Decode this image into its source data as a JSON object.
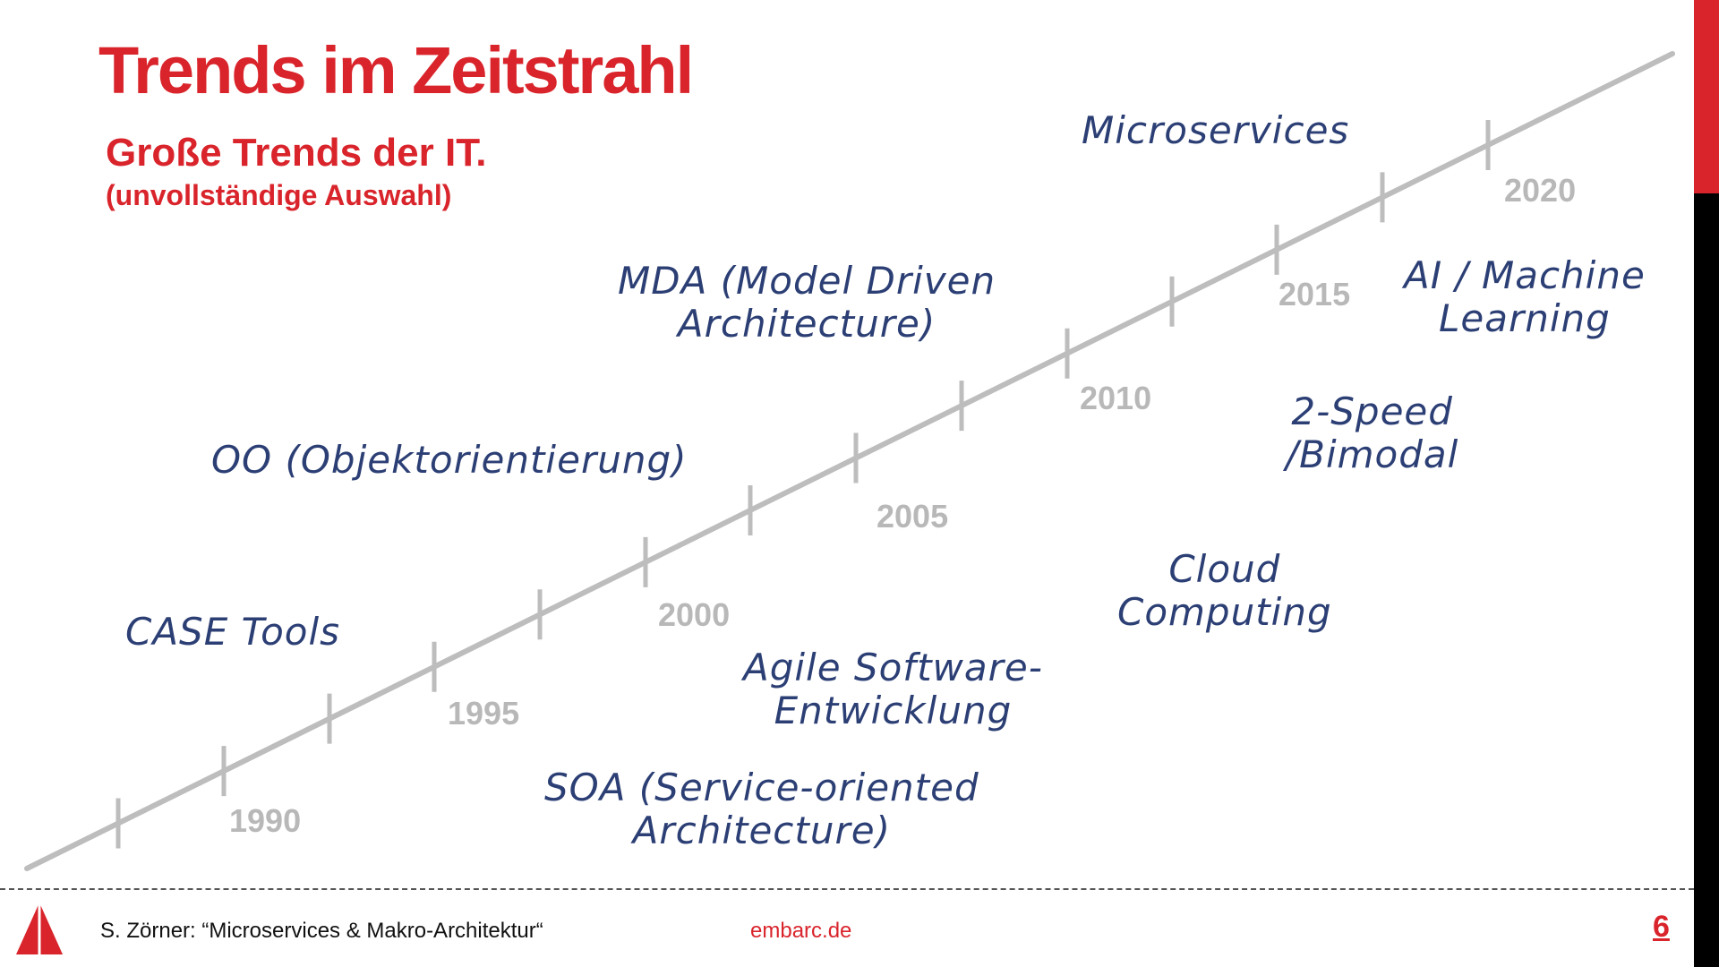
{
  "slide": {
    "title": "Trends im Zeitstrahl",
    "subtitle": "Große Trends der IT.",
    "subtitle_note": "(unvollständige Auswahl)"
  },
  "timeline": {
    "years": [
      "1990",
      "1995",
      "2000",
      "2005",
      "2010",
      "2015",
      "2020"
    ],
    "trends": [
      {
        "lines": [
          "Microservices"
        ]
      },
      {
        "lines": [
          "MDA (Model Driven",
          "Architecture)"
        ]
      },
      {
        "lines": [
          "AI / Machine",
          "Learning"
        ]
      },
      {
        "lines": [
          "2-Speed",
          "/Bimodal"
        ]
      },
      {
        "lines": [
          "OO (Objektorientierung)"
        ]
      },
      {
        "lines": [
          "Cloud",
          "Computing"
        ]
      },
      {
        "lines": [
          "CASE Tools"
        ]
      },
      {
        "lines": [
          "Agile Software-",
          "Entwicklung"
        ]
      },
      {
        "lines": [
          "SOA (Service-oriented",
          "Architecture)"
        ]
      }
    ]
  },
  "footer": {
    "text": "S. Zörner: “Microservices & Makro-Architektur“",
    "site": "embarc.de",
    "page": "6"
  },
  "colors": {
    "accent": "#d9242b",
    "handwriting": "#2c3f75",
    "timeline": "#bdbdbd"
  }
}
